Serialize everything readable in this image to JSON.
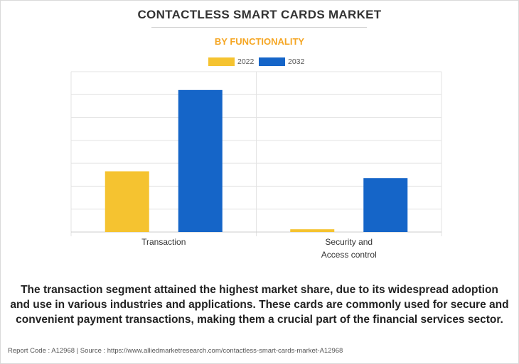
{
  "title": "CONTACTLESS SMART CARDS MARKET",
  "subtitle": "BY FUNCTIONALITY",
  "colors": {
    "accent": "#f5a623",
    "series_2022": "#f5c330",
    "series_2032": "#1565c8",
    "grid": "#e3e3e3"
  },
  "chart_data": {
    "type": "bar",
    "categories": [
      "Transaction",
      "Security and\nAccess control"
    ],
    "series": [
      {
        "name": "2022",
        "values": [
          26.5,
          1.2
        ]
      },
      {
        "name": "2032",
        "values": [
          62.0,
          23.5
        ]
      }
    ],
    "ylim": [
      0,
      70
    ],
    "grid": true,
    "legend": "top-center"
  },
  "summary": "The transaction segment attained the highest market share, due to its widespread adoption and use in various industries and applications. These cards are commonly used for secure and convenient payment transactions, making them a crucial part of the financial services sector.",
  "footer": "Report Code : A12968  |  Source : https://www.alliedmarketresearch.com/contactless-smart-cards-market-A12968"
}
